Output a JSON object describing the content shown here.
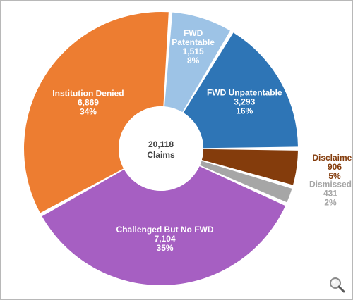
{
  "chart_data": {
    "type": "pie",
    "donut": true,
    "center_label": {
      "value": "20,118",
      "unit": "Claims"
    },
    "slices": [
      {
        "name": "FWD Patentable",
        "value_label": "1,515",
        "value": 1515,
        "percent": "8%",
        "color": "#9dc3e6",
        "label_color": "#ffffff",
        "label_position": "inside"
      },
      {
        "name": "FWD Unpatentable",
        "value_label": "3,293",
        "value": 3293,
        "percent": "16%",
        "color": "#2e75b6",
        "label_color": "#ffffff",
        "label_position": "inside"
      },
      {
        "name": "Disclaimed",
        "value_label": "906",
        "value": 906,
        "percent": "5%",
        "color": "#843c0c",
        "label_color": "#843c0c",
        "label_position": "outside"
      },
      {
        "name": "Dismissed",
        "value_label": "431",
        "value": 431,
        "percent": "2%",
        "color": "#a6a6a6",
        "label_color": "#a6a6a6",
        "label_position": "outside"
      },
      {
        "name": "Challenged But No FWD",
        "value_label": "7,104",
        "value": 7104,
        "percent": "35%",
        "color": "#a65fc2",
        "label_color": "#ffffff",
        "label_position": "inside"
      },
      {
        "name": "Institution Denied",
        "value_label": "6,869",
        "value": 6869,
        "percent": "34%",
        "color": "#ed7d31",
        "label_color": "#ffffff",
        "label_position": "inside"
      }
    ]
  },
  "zoom_icon": "magnifier-icon"
}
